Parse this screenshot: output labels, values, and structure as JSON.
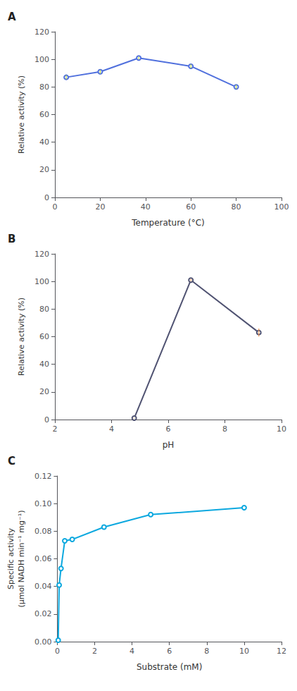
{
  "chart_data": [
    {
      "type": "line",
      "title": "A",
      "x": [
        5,
        20,
        37,
        60,
        80
      ],
      "values": [
        87,
        91,
        101,
        95,
        80
      ],
      "yerr": [
        1.5,
        1.5,
        1.0,
        1.5,
        1.5
      ],
      "xlabel": "Temperature (°C)",
      "ylabel": "Relative activity (%)",
      "xlim": [
        0,
        100
      ],
      "ylim": [
        0,
        120
      ],
      "xticks": [
        0,
        20,
        40,
        60,
        80,
        100
      ],
      "yticks": [
        0,
        20,
        40,
        60,
        80,
        100,
        120
      ],
      "grid": false
    },
    {
      "type": "line",
      "title": "B",
      "x": [
        4.8,
        6.8,
        9.2
      ],
      "values": [
        1,
        101,
        63
      ],
      "yerr": [
        0.3,
        0.8,
        3
      ],
      "xlabel": "pH",
      "ylabel": "Relative activity (%)",
      "xlim": [
        2,
        10
      ],
      "ylim": [
        0,
        120
      ],
      "xticks": [
        2,
        4,
        6,
        8,
        10
      ],
      "yticks": [
        0,
        20,
        40,
        60,
        80,
        100,
        120
      ],
      "grid": false
    },
    {
      "type": "line",
      "title": "C",
      "x": [
        0.05,
        0.1,
        0.2,
        0.4,
        0.8,
        2.5,
        5.0,
        10.0
      ],
      "values": [
        0.001,
        0.041,
        0.053,
        0.073,
        0.074,
        0.083,
        0.092,
        0.097
      ],
      "xlabel": "Substrate (mM)",
      "ylabel": "Specific activity\n(μmol NADH min⁻¹ mg⁻¹)",
      "xlim": [
        0,
        12
      ],
      "ylim": [
        0.0,
        0.12
      ],
      "xticks": [
        0,
        2,
        4,
        6,
        8,
        10,
        12
      ],
      "yticks": [
        {
          "value": 0,
          "label": "0.00"
        },
        0.02,
        0.04,
        0.06,
        0.08,
        {
          "value": 0.1,
          "label": "0.10"
        },
        0.12
      ],
      "grid": false
    }
  ]
}
